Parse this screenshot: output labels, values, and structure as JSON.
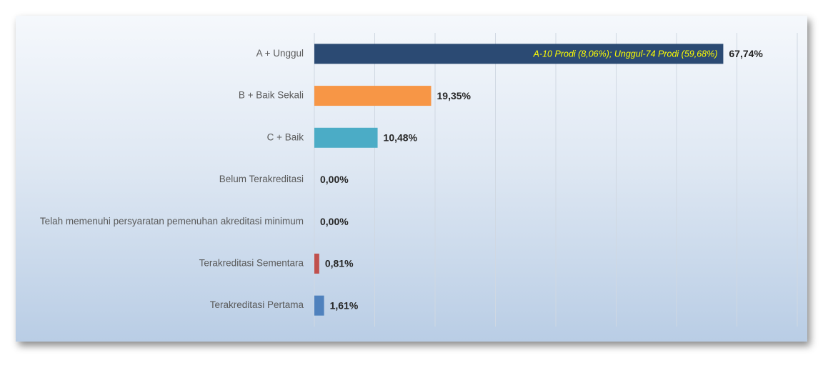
{
  "chart_data": {
    "type": "hbar",
    "categories": [
      "A + Unggul",
      "B + Baik Sekali",
      "C + Baik",
      "Belum Terakreditasi",
      "Telah memenuhi persyaratan pemenuhan akreditasi minimum",
      "Terakreditasi Sementara",
      "Terakreditasi Pertama"
    ],
    "values": [
      67.74,
      19.35,
      10.48,
      0,
      0,
      0.81,
      1.61
    ],
    "value_labels": [
      "67,74%",
      "19,35%",
      "10,48%",
      "0,00%",
      "0,00%",
      "0,81%",
      "1,61%"
    ],
    "colors": [
      "#2b4a73",
      "#f79646",
      "#4bacc6",
      "#9bbb59",
      "#8064a2",
      "#c0504d",
      "#4f81bd"
    ],
    "annotations": [
      {
        "text": "A-10 Prodi (8,06%); Unggul-74 Prodi (59,68%)",
        "category": 0
      }
    ],
    "xlim": [
      0,
      80
    ],
    "xticks": [
      0,
      10,
      20,
      30,
      40,
      50,
      60,
      70,
      80
    ],
    "grid": true
  }
}
